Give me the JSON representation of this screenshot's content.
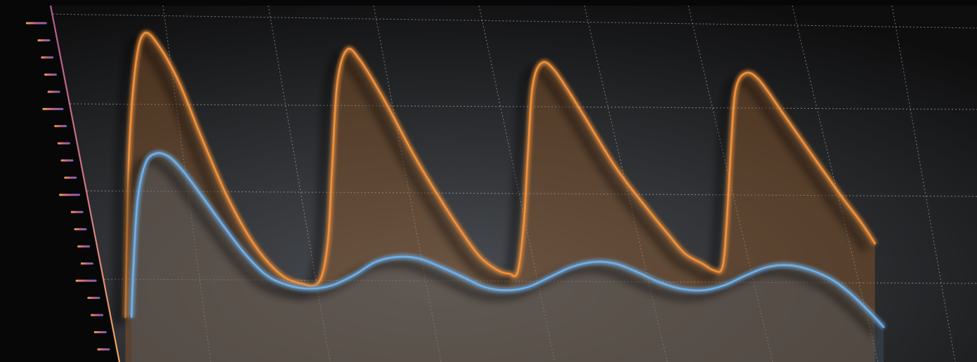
{
  "chart_data": {
    "type": "area",
    "x_range": [
      0,
      100
    ],
    "y_range": [
      0,
      100
    ],
    "grid": true,
    "series": [
      {
        "key": "orange",
        "color": "#f0913a",
        "fill": "#a0602a",
        "points": [
          [
            2.3,
            8
          ],
          [
            2.7,
            56
          ],
          [
            3.5,
            84
          ],
          [
            4.5,
            93
          ],
          [
            6.2,
            89
          ],
          [
            8.5,
            78
          ],
          [
            11,
            62
          ],
          [
            14,
            44
          ],
          [
            17,
            30
          ],
          [
            20,
            21
          ],
          [
            22.5,
            18
          ],
          [
            24.5,
            18.5
          ],
          [
            25.5,
            30
          ],
          [
            26,
            52
          ],
          [
            26.6,
            78
          ],
          [
            27.7,
            88
          ],
          [
            29.2,
            85
          ],
          [
            32,
            73
          ],
          [
            35.5,
            56
          ],
          [
            38.5,
            43
          ],
          [
            41,
            33
          ],
          [
            43,
            26
          ],
          [
            45,
            22
          ],
          [
            46.3,
            21
          ],
          [
            47.3,
            21.5
          ],
          [
            48,
            36
          ],
          [
            48.5,
            58
          ],
          [
            49,
            77
          ],
          [
            50,
            84
          ],
          [
            51.5,
            82
          ],
          [
            54.5,
            70
          ],
          [
            58.5,
            53
          ],
          [
            62,
            41
          ],
          [
            64.5,
            33
          ],
          [
            66.5,
            27
          ],
          [
            68.5,
            24
          ],
          [
            69.8,
            22
          ],
          [
            70.8,
            23
          ],
          [
            71.3,
            37
          ],
          [
            71.8,
            60
          ],
          [
            72.3,
            76
          ],
          [
            73.4,
            81
          ],
          [
            75,
            79
          ],
          [
            78,
            68
          ],
          [
            81.5,
            55
          ],
          [
            84.5,
            44
          ],
          [
            86.8,
            36
          ],
          [
            88.3,
            30
          ]
        ]
      },
      {
        "key": "blue",
        "color": "#6fb0e8",
        "fill": "#4c6272",
        "points": [
          [
            3,
            8
          ],
          [
            3.2,
            22
          ],
          [
            3.7,
            43
          ],
          [
            4.6,
            54
          ],
          [
            5.8,
            57
          ],
          [
            7.3,
            56
          ],
          [
            9,
            51.5
          ],
          [
            11,
            44.5
          ],
          [
            13.5,
            35.5
          ],
          [
            16,
            27
          ],
          [
            18.5,
            20.5
          ],
          [
            21,
            17.5
          ],
          [
            23.5,
            16.5
          ],
          [
            26,
            17.5
          ],
          [
            28.5,
            20.5
          ],
          [
            31,
            24.5
          ],
          [
            33.5,
            26
          ],
          [
            36,
            25.5
          ],
          [
            38.5,
            23
          ],
          [
            41,
            20
          ],
          [
            43.5,
            17
          ],
          [
            46,
            16
          ],
          [
            48.5,
            17
          ],
          [
            51,
            20
          ],
          [
            53.5,
            23
          ],
          [
            56,
            24.5
          ],
          [
            58.5,
            24
          ],
          [
            61,
            21.5
          ],
          [
            63.5,
            18.5
          ],
          [
            66,
            16.5
          ],
          [
            68.5,
            16
          ],
          [
            71,
            17.5
          ],
          [
            73.5,
            20.5
          ],
          [
            76,
            23
          ],
          [
            78.5,
            23.5
          ],
          [
            81,
            22
          ],
          [
            83.5,
            19
          ],
          [
            85.5,
            15
          ],
          [
            87.5,
            10
          ],
          [
            89.3,
            5
          ]
        ]
      }
    ],
    "scale_ticks": 20,
    "scale_gradient": [
      "#f4a04a",
      "#c25c8c",
      "#6a6ab8"
    ]
  }
}
